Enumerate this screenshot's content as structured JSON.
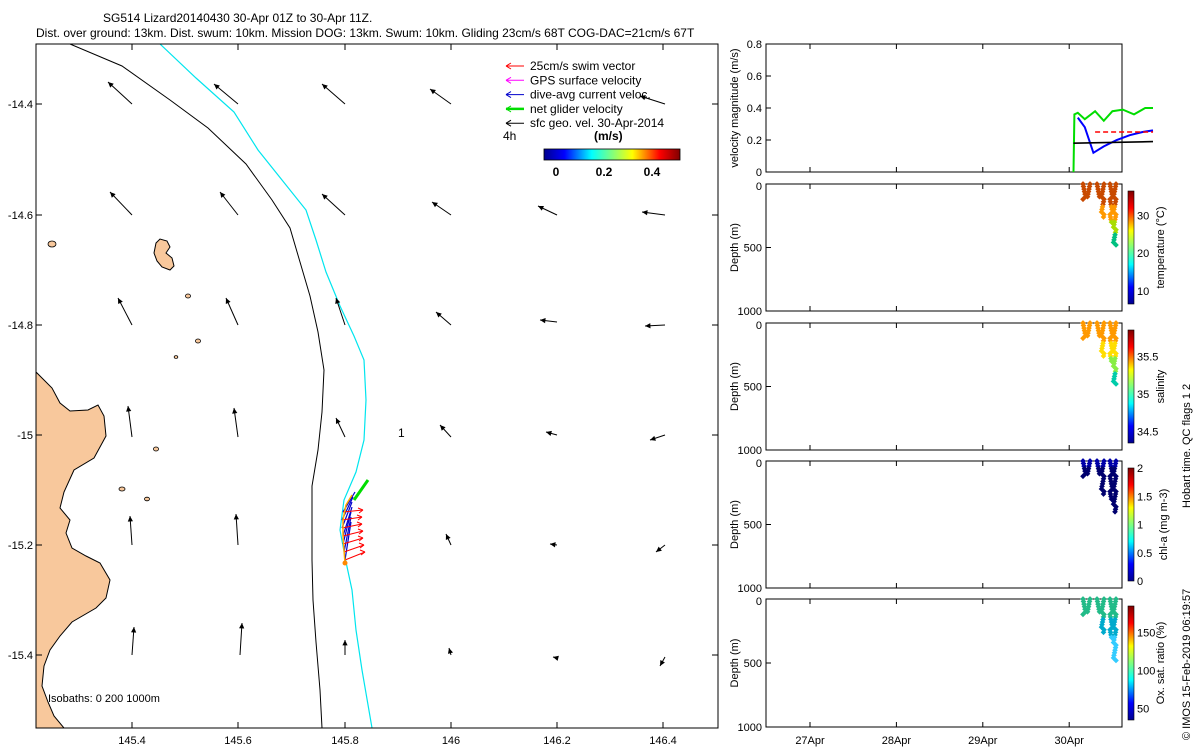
{
  "header": {
    "title_line1": "SG514 Lizard20140430 30-Apr 01Z to 30-Apr 11Z.",
    "title_line2": "Dist. over ground: 13km. Dist. swum: 10km. Mission DOG: 13km. Swum: 10km. Gliding 23cm/s 68T COG-DAC=21cm/s 67T"
  },
  "map": {
    "x_ticks": [
      "145.4",
      "145.6",
      "145.8",
      "146",
      "146.2",
      "146.4"
    ],
    "y_ticks": [
      "-14.4",
      "-14.6",
      "-14.8",
      "-15",
      "-15.2",
      "-15.4"
    ],
    "legend": [
      {
        "label": "25cm/s swim vector",
        "color": "#ff0000"
      },
      {
        "label": "GPS surface velocity",
        "color": "#ff00ff"
      },
      {
        "label": "dive-avg current veloc.",
        "color": "#0000cc"
      },
      {
        "label": "net glider velocity",
        "color": "#00dd00"
      },
      {
        "label": "sfc geo. vel. 30-Apr-2014",
        "color": "#000000"
      }
    ],
    "interval_label": "4h",
    "colorbar_unit": "(m/s)",
    "colorbar_ticks": [
      "0",
      "0.2",
      "0.4"
    ],
    "annotation": "1",
    "isobath_label": "Isobaths: 0   200  1000m",
    "colors": {
      "land": "#f8c89c",
      "iso200": "#000000",
      "iso1000": "#00e5ee"
    }
  },
  "chart_data": [
    {
      "type": "line",
      "ylabel": "velocity magnitude (m/s)",
      "ylim": [
        0,
        0.8
      ],
      "y_ticks": [
        "0",
        "0.2",
        "0.4",
        "0.6",
        "0.8"
      ],
      "series": [
        {
          "color": "#00dd00",
          "x": [
            30.05,
            30.06,
            30.1,
            30.18,
            30.3,
            30.4,
            30.5,
            30.62,
            30.75,
            30.88,
            30.97
          ],
          "values": [
            0.0,
            0.36,
            0.37,
            0.33,
            0.38,
            0.32,
            0.38,
            0.39,
            0.36,
            0.4,
            0.4
          ]
        },
        {
          "color": "#0000ff",
          "x": [
            30.1,
            30.18,
            30.28,
            30.4,
            30.55,
            30.7,
            30.85,
            30.97
          ],
          "values": [
            0.34,
            0.28,
            0.12,
            0.16,
            0.2,
            0.23,
            0.25,
            0.26
          ]
        },
        {
          "color": "#ff0000",
          "x": [
            30.3,
            30.97
          ],
          "values": [
            0.25,
            0.25
          ]
        },
        {
          "color": "#000000",
          "x": [
            30.05,
            30.97
          ],
          "values": [
            0.18,
            0.19
          ]
        }
      ]
    },
    {
      "type": "scatter",
      "ylabel": "Depth (m)",
      "colorbar_label": "temperature (°C)",
      "colorbar_ticks": [
        "10",
        "20",
        "30"
      ],
      "y_ticks": [
        "0",
        "500",
        "1000"
      ]
    },
    {
      "type": "scatter",
      "ylabel": "Depth (m)",
      "colorbar_label": "salinity",
      "colorbar_ticks": [
        "34.5",
        "35",
        "35.5"
      ],
      "y_ticks": [
        "0",
        "500",
        "1000"
      ]
    },
    {
      "type": "scatter",
      "ylabel": "Depth (m)",
      "colorbar_label": "chl-a (mg m-3)",
      "colorbar_ticks": [
        "0",
        "0.5",
        "1",
        "1.5",
        "2"
      ],
      "y_ticks": [
        "0",
        "500",
        "1000"
      ]
    },
    {
      "type": "scatter",
      "ylabel": "Depth (m)",
      "colorbar_label": "Ox. sat. ratio (%)",
      "colorbar_ticks": [
        "50",
        "100",
        "150"
      ],
      "y_ticks": [
        "0",
        "500",
        "1000"
      ],
      "x_ticks": [
        "27Apr",
        "28Apr",
        "29Apr",
        "30Apr"
      ]
    }
  ],
  "side_note_qc": "Hobart time. QC flags 1  2",
  "side_note_imos": "© IMOS 15-Feb-2019 06:19:57"
}
